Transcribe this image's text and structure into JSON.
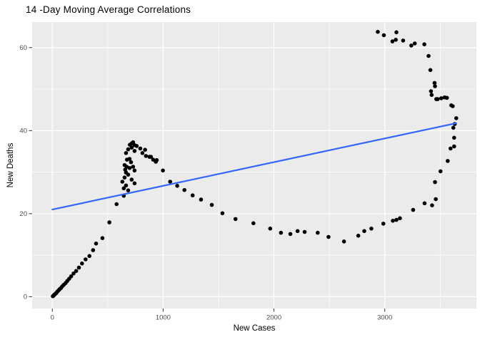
{
  "chart_data": {
    "type": "scatter",
    "title": "14 -Day Moving Average Correlations",
    "xlabel": "New Cases",
    "ylabel": "New Deaths",
    "x_ticks": [
      0,
      1000,
      2000,
      3000
    ],
    "y_ticks": [
      0,
      20,
      40,
      60
    ],
    "x_minor_gridlines": [
      500,
      1500,
      2500,
      3500
    ],
    "y_minor_gridlines": [
      10,
      30,
      50
    ],
    "xlim": [
      -182,
      3827
    ],
    "ylim": [
      -2.85,
      66.15
    ],
    "grid": "on",
    "legend": "none",
    "colors": {
      "panel_background": "#EBEBEB",
      "gridline": "#FFFFFF",
      "point": "#000000",
      "trend_line": "#3366FF",
      "tick_text": "#4D4D4D",
      "tick_mark": "#333333",
      "axis_title_text": "#000000",
      "title_text": "#000000"
    },
    "trend_line": {
      "x1": 0,
      "y1": 21.0,
      "x2": 3645,
      "y2": 41.8
    },
    "points": [
      [
        5,
        0.1
      ],
      [
        10,
        0.2
      ],
      [
        15,
        0.4
      ],
      [
        20,
        0.5
      ],
      [
        28,
        0.7
      ],
      [
        36,
        0.9
      ],
      [
        45,
        1.2
      ],
      [
        55,
        1.5
      ],
      [
        66,
        1.8
      ],
      [
        78,
        2.1
      ],
      [
        90,
        2.5
      ],
      [
        105,
        2.9
      ],
      [
        120,
        3.3
      ],
      [
        135,
        3.8
      ],
      [
        152,
        4.3
      ],
      [
        170,
        4.9
      ],
      [
        192,
        5.6
      ],
      [
        215,
        6.2
      ],
      [
        240,
        7.0
      ],
      [
        268,
        8.0
      ],
      [
        300,
        9.0
      ],
      [
        335,
        9.8
      ],
      [
        368,
        11.2
      ],
      [
        395,
        12.8
      ],
      [
        452,
        14.1
      ],
      [
        515,
        17.9
      ],
      [
        580,
        22.3
      ],
      [
        645,
        24.3
      ],
      [
        632,
        27.7
      ],
      [
        645,
        26.1
      ],
      [
        652,
        28.7
      ],
      [
        652,
        31.7
      ],
      [
        658,
        30.6
      ],
      [
        665,
        26.8
      ],
      [
        665,
        29.9
      ],
      [
        665,
        34.6
      ],
      [
        671,
        31.3
      ],
      [
        674,
        33.0
      ],
      [
        684,
        25.6
      ],
      [
        684,
        29.4
      ],
      [
        684,
        35.5
      ],
      [
        697,
        31.0
      ],
      [
        697,
        33.2
      ],
      [
        700,
        36.6
      ],
      [
        710,
        32.4
      ],
      [
        716,
        28.2
      ],
      [
        716,
        35.9
      ],
      [
        716,
        36.9
      ],
      [
        729,
        31.3
      ],
      [
        729,
        37.2
      ],
      [
        742,
        27.3
      ],
      [
        742,
        30.4
      ],
      [
        742,
        35.1
      ],
      [
        742,
        36.5
      ],
      [
        761,
        36.3
      ],
      [
        794,
        35.7
      ],
      [
        813,
        34.6
      ],
      [
        845,
        33.9
      ],
      [
        877,
        33.7
      ],
      [
        910,
        33.0
      ],
      [
        942,
        32.9
      ],
      [
        837,
        35.4
      ],
      [
        890,
        33.7
      ],
      [
        934,
        32.5
      ],
      [
        998,
        30.4
      ],
      [
        1063,
        27.7
      ],
      [
        1127,
        26.7
      ],
      [
        1192,
        25.7
      ],
      [
        1266,
        24.4
      ],
      [
        1342,
        23.4
      ],
      [
        1439,
        22.1
      ],
      [
        1535,
        20.1
      ],
      [
        1653,
        18.7
      ],
      [
        1815,
        17.7
      ],
      [
        1966,
        16.4
      ],
      [
        2063,
        15.4
      ],
      [
        2148,
        15.1
      ],
      [
        2213,
        15.8
      ],
      [
        2277,
        15.6
      ],
      [
        2395,
        15.4
      ],
      [
        2492,
        14.4
      ],
      [
        2632,
        13.3
      ],
      [
        2761,
        14.7
      ],
      [
        2815,
        15.8
      ],
      [
        2879,
        16.4
      ],
      [
        2987,
        17.6
      ],
      [
        3073,
        18.3
      ],
      [
        3105,
        18.5
      ],
      [
        3137,
        18.9
      ],
      [
        3256,
        20.9
      ],
      [
        3359,
        22.5
      ],
      [
        3427,
        22.0
      ],
      [
        3460,
        23.5
      ],
      [
        3453,
        27.6
      ],
      [
        3503,
        30.2
      ],
      [
        3568,
        32.7
      ],
      [
        3594,
        35.7
      ],
      [
        3626,
        36.2
      ],
      [
        3626,
        38.3
      ],
      [
        3619,
        40.7
      ],
      [
        3632,
        41.6
      ],
      [
        3645,
        43.0
      ],
      [
        3613,
        45.9
      ],
      [
        3600,
        46.1
      ],
      [
        3561,
        47.9
      ],
      [
        3540,
        48.0
      ],
      [
        3510,
        47.8
      ],
      [
        3477,
        47.6
      ],
      [
        3465,
        47.6
      ],
      [
        3423,
        48.6
      ],
      [
        3417,
        49.5
      ],
      [
        3453,
        50.7
      ],
      [
        3449,
        51.5
      ],
      [
        3411,
        54.6
      ],
      [
        3395,
        58.0
      ],
      [
        3357,
        60.8
      ],
      [
        3271,
        61.0
      ],
      [
        3239,
        60.5
      ],
      [
        3166,
        61.7
      ],
      [
        3099,
        61.9
      ],
      [
        3069,
        61.5
      ],
      [
        3105,
        63.7
      ],
      [
        2992,
        63.0
      ],
      [
        2937,
        63.8
      ]
    ]
  }
}
